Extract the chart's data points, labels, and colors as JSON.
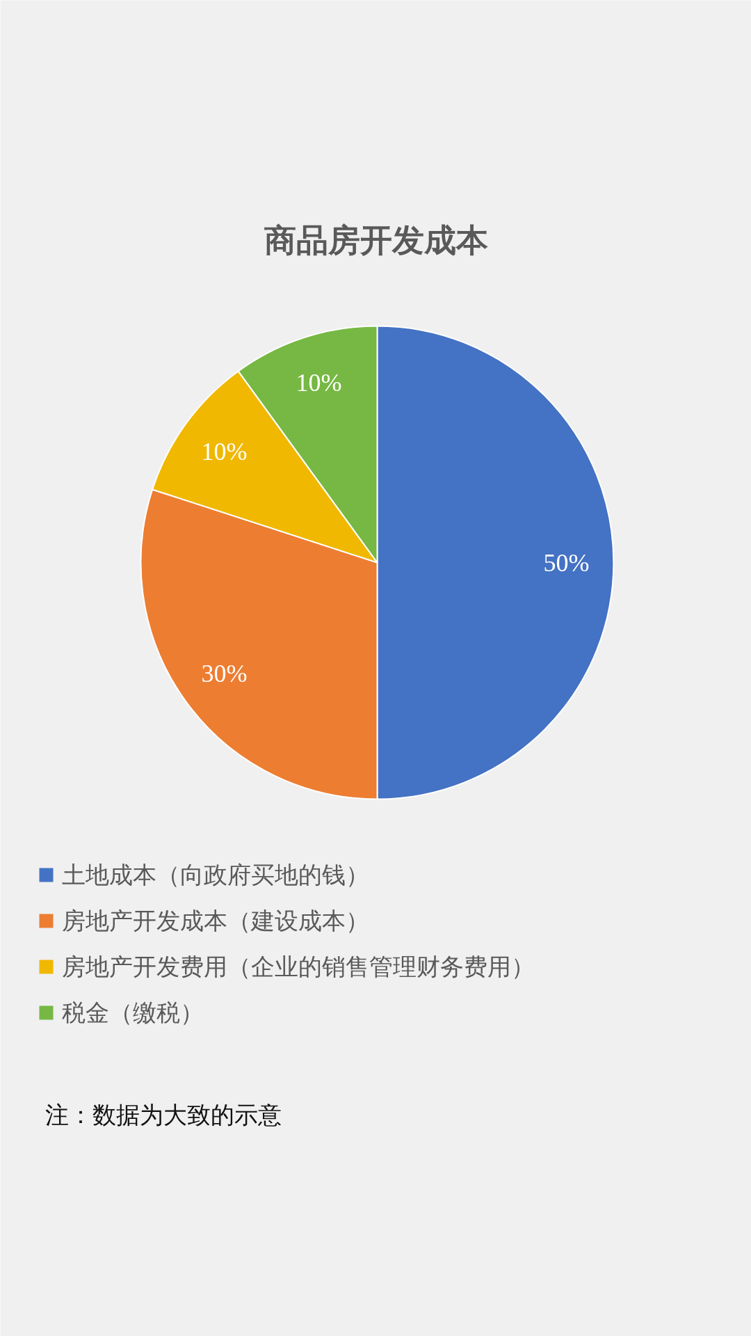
{
  "chart_data": {
    "type": "pie",
    "title": "商品房开发成本",
    "categories": [
      "土地成本（向政府买地的钱）",
      "房地产开发成本（建设成本）",
      "房地产开发费用（企业的销售管理财务费用）",
      "税金（缴税）"
    ],
    "values": [
      50,
      30,
      10,
      10
    ],
    "colors": [
      "#4472c4",
      "#ed7d31",
      "#f0b800",
      "#76b843"
    ],
    "value_labels": [
      "50%",
      "30%",
      "10%",
      "10%"
    ],
    "legend": "bottom",
    "annotations": [
      "注：数据为大致的示意"
    ]
  }
}
